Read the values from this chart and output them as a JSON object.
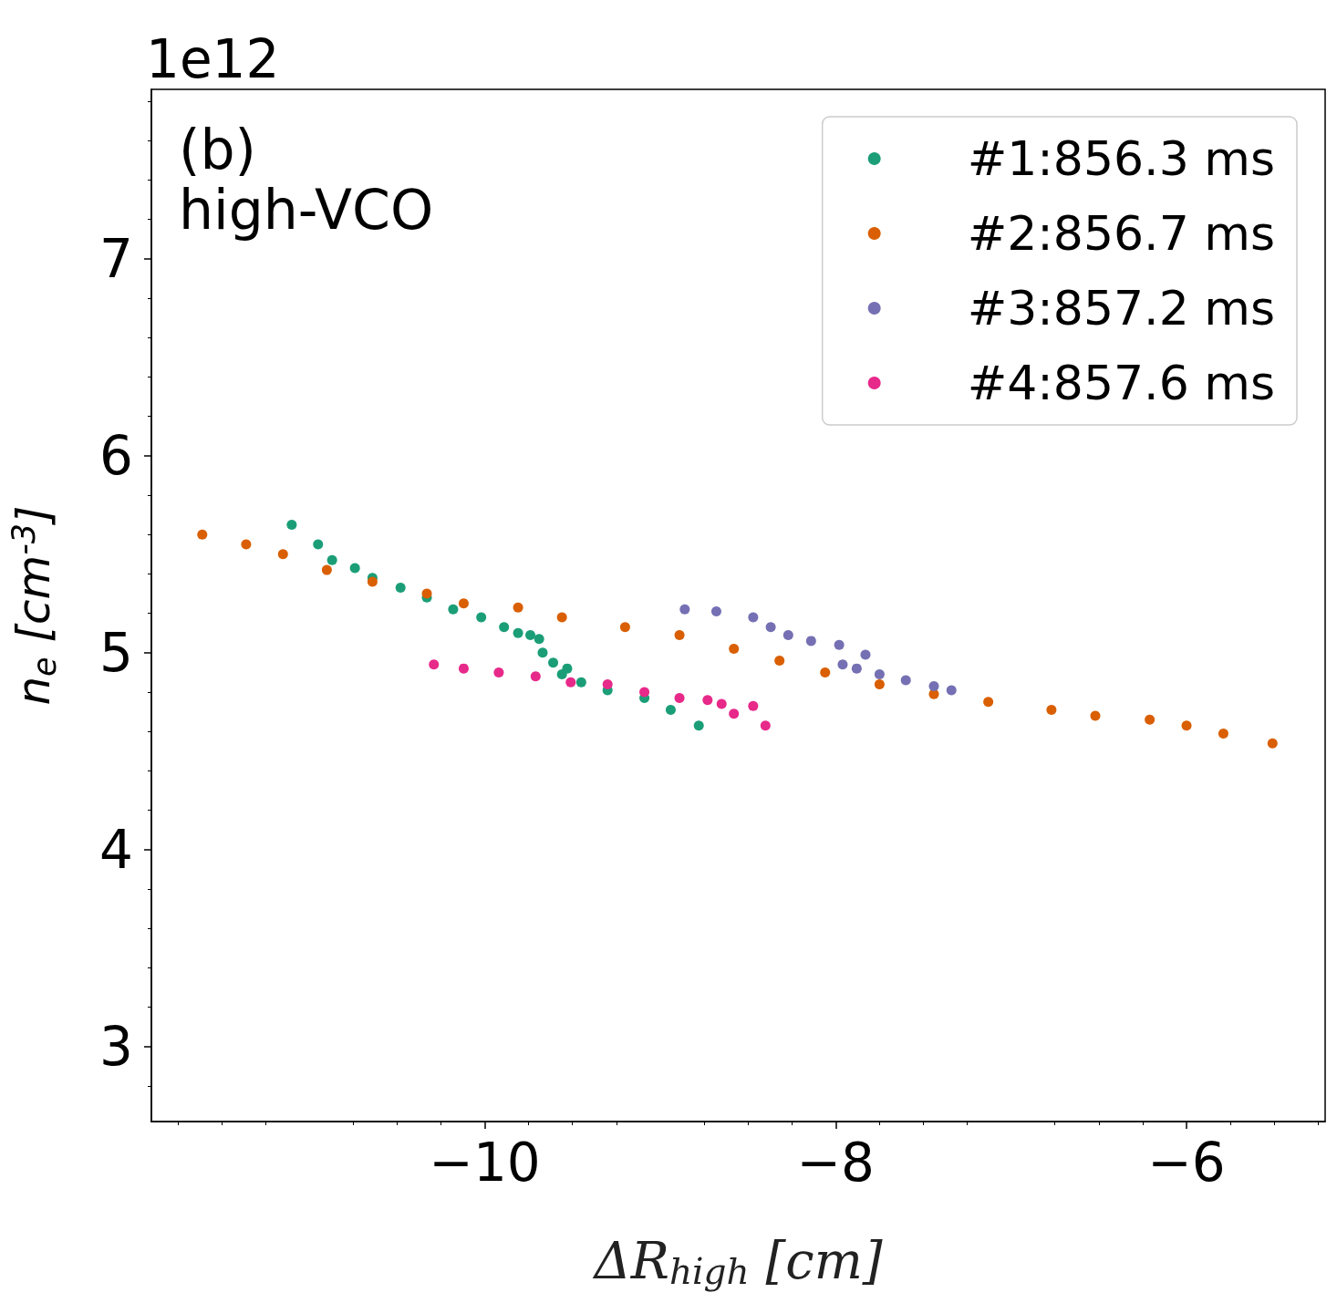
{
  "chart_data": {
    "type": "scatter",
    "xlabel": "ΔR$_{high}$ [cm]",
    "ylabel": "n$_{e}$ [cm$^{-3}$]",
    "annotations": [
      "1e12",
      "(b)",
      "high-VCO"
    ],
    "xlim": [
      -11.9,
      -5.21
    ],
    "ylim": [
      2.62,
      7.86
    ],
    "xticks": [
      {
        "value": -10,
        "label": "−10"
      },
      {
        "value": -8,
        "label": "−8"
      },
      {
        "value": -6,
        "label": "−6"
      }
    ],
    "yticks": [
      3,
      4,
      5,
      6,
      7
    ],
    "grid": false,
    "legend": "top right",
    "marker": "circle",
    "series": [
      {
        "name": "#1:856.3 ms",
        "color": "#1b9e77",
        "x": [
          -11.1,
          -10.95,
          -10.87,
          -10.74,
          -10.64,
          -10.48,
          -10.33,
          -10.18,
          -10.02,
          -9.89,
          -9.81,
          -9.74,
          -9.69,
          -9.67,
          -9.61,
          -9.53,
          -9.56,
          -9.45,
          -9.3,
          -9.09,
          -8.94,
          -8.78
        ],
        "values": [
          5.65,
          5.55,
          5.47,
          5.43,
          5.38,
          5.33,
          5.28,
          5.22,
          5.18,
          5.13,
          5.1,
          5.09,
          5.07,
          5.0,
          4.95,
          4.92,
          4.89,
          4.85,
          4.81,
          4.77,
          4.71,
          4.63
        ]
      },
      {
        "name": "#2:856.7 ms",
        "color": "#d95f02",
        "x": [
          -11.61,
          -11.36,
          -11.15,
          -10.9,
          -10.64,
          -10.33,
          -10.12,
          -9.81,
          -9.56,
          -9.2,
          -8.89,
          -8.58,
          -8.32,
          -8.06,
          -7.75,
          -7.44,
          -7.13,
          -6.77,
          -6.52,
          -6.21,
          -6.0,
          -5.79,
          -5.51
        ],
        "values": [
          5.6,
          5.55,
          5.5,
          5.42,
          5.36,
          5.3,
          5.25,
          5.23,
          5.18,
          5.13,
          5.09,
          5.02,
          4.96,
          4.9,
          4.84,
          4.79,
          4.75,
          4.71,
          4.68,
          4.66,
          4.63,
          4.59,
          4.54
        ]
      },
      {
        "name": "#3:857.2 ms",
        "color": "#7570b3",
        "x": [
          -8.86,
          -8.68,
          -8.47,
          -8.37,
          -8.27,
          -8.14,
          -7.98,
          -7.83,
          -7.96,
          -7.88,
          -7.75,
          -7.6,
          -7.44,
          -7.34
        ],
        "values": [
          5.22,
          5.21,
          5.18,
          5.13,
          5.09,
          5.06,
          5.04,
          4.99,
          4.94,
          4.92,
          4.89,
          4.86,
          4.83,
          4.81
        ]
      },
      {
        "name": "#4:857.6 ms",
        "color": "#e7298a",
        "x": [
          -10.29,
          -10.12,
          -9.92,
          -9.71,
          -9.51,
          -9.3,
          -9.09,
          -8.89,
          -8.73,
          -8.65,
          -8.47,
          -8.58,
          -8.4
        ],
        "values": [
          4.94,
          4.92,
          4.9,
          4.88,
          4.85,
          4.84,
          4.8,
          4.77,
          4.76,
          4.74,
          4.73,
          4.69,
          4.63
        ]
      }
    ]
  }
}
